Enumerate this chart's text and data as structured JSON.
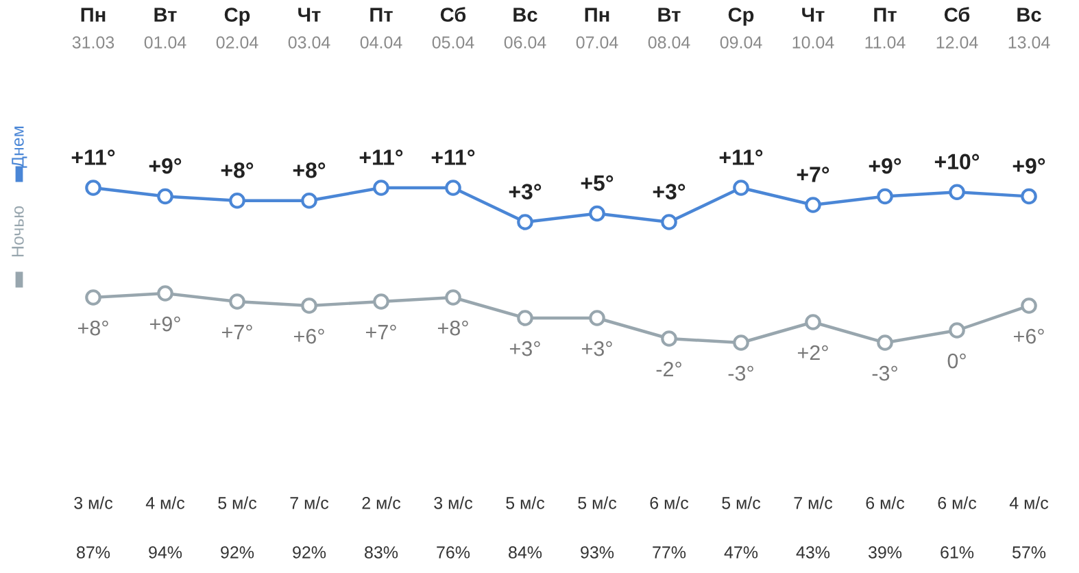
{
  "chart_data": [
    {
      "type": "line",
      "categories": [
        "Пн\n31.03",
        "Вт\n01.04",
        "Ср\n02.04",
        "Чт\n03.04",
        "Пт\n04.04",
        "Сб\n05.04",
        "Вс\n06.04",
        "Пн\n07.04",
        "Вт\n08.04",
        "Ср\n09.04",
        "Чт\n10.04",
        "Пт\n11.04",
        "Сб\n12.04",
        "Вс\n13.04"
      ],
      "series": [
        {
          "name": "Днем",
          "color": "#4a86d6",
          "values": [
            11,
            9,
            8,
            8,
            11,
            11,
            3,
            5,
            3,
            11,
            7,
            9,
            10,
            9
          ],
          "value_labels": [
            "+11°",
            "+9°",
            "+8°",
            "+8°",
            "+11°",
            "+11°",
            "+3°",
            "+5°",
            "+3°",
            "+11°",
            "+7°",
            "+9°",
            "+10°",
            "+9°"
          ]
        }
      ],
      "marker": "circle",
      "legend": "left",
      "annotations": [
        "3 м/с",
        "4 м/с",
        "5 м/с",
        "7 м/с",
        "2 м/с",
        "3 м/с",
        "5 м/с",
        "5 м/с",
        "6 м/с",
        "5 м/с",
        "7 м/с",
        "6 м/с",
        "6 м/с",
        "4 м/с",
        "87%",
        "94%",
        "92%",
        "92%",
        "83%",
        "76%",
        "84%",
        "93%",
        "77%",
        "47%",
        "43%",
        "39%",
        "61%",
        "57%"
      ]
    },
    {
      "type": "line",
      "categories": [
        null,
        null,
        null,
        null,
        null,
        null,
        null,
        null,
        null,
        null,
        null,
        null,
        null,
        null
      ],
      "series": [
        {
          "name": "Ночью",
          "color": "#98a6ae",
          "values": [
            8,
            9,
            7,
            6,
            7,
            8,
            3,
            3,
            -2,
            -3,
            2,
            -3,
            0,
            6
          ],
          "value_labels": [
            "+8°",
            "+9°",
            "+7°",
            "+6°",
            "+7°",
            "+8°",
            "+3°",
            "+3°",
            "-2°",
            "-3°",
            "+2°",
            "-3°",
            "0°",
            "+6°"
          ]
        }
      ],
      "marker": "circle",
      "legend": "left"
    }
  ]
}
